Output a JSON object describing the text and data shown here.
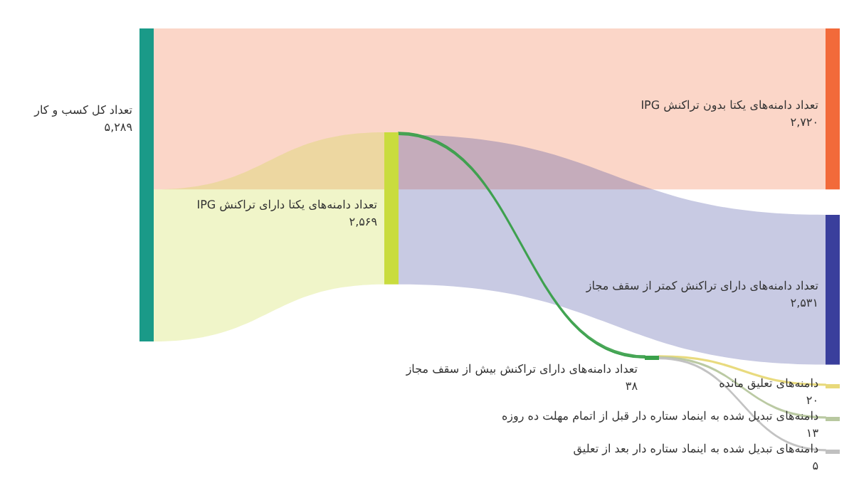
{
  "chart_data": {
    "type": "other",
    "categories": [
      "تعداد کل کسب و کار",
      "تعداد دامنه‌های یکتا بدون تراکنش IPG",
      "تعداد دامنه‌های یکتا دارای تراکنش IPG",
      "تعداد دامنه‌های دارای تراکنش بیش از سقف مجاز",
      "تعداد دامنه‌های دارای تراکنش کمتر از سقف مجاز",
      "دامنه‌های تعلیق مانده",
      "دامنه‌های تبدیل شده به اینماد ستاره دار قبل از اتمام مهلت ده روزه",
      "دامنه‌های تبدیل شده به اینماد ستاره دار بعد از تعلیق"
    ],
    "values": [
      5289,
      2720,
      2569,
      38,
      2531,
      20,
      13,
      5
    ],
    "value_labels": [
      "۵,۲۸۹",
      "۲,۷۲۰",
      "۲,۵۶۹",
      "۳۸",
      "۲,۵۳۱",
      "۲۰",
      "۱۳",
      "۵"
    ],
    "colors": [
      "#1a9a88",
      "#f26a3a",
      "#c9dc3e",
      "#3aa04a",
      "#3a3f9c",
      "#e8d97a",
      "#b8c8a0",
      "#c0c0c0"
    ]
  }
}
